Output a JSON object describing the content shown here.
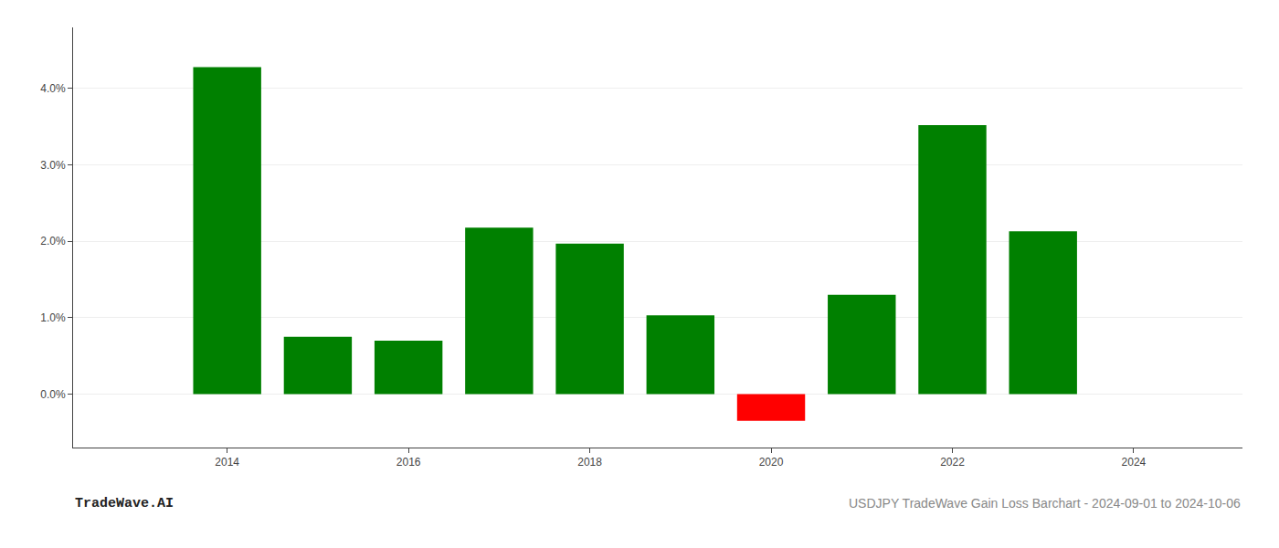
{
  "chart_data": {
    "type": "bar",
    "title": "USDJPY TradeWave Gain Loss Barchart - 2024-09-01 to 2024-10-06",
    "annotations": [
      {
        "text": "TradeWave.AI"
      }
    ],
    "x": [
      2014,
      2015,
      2016,
      2017,
      2018,
      2019,
      2020,
      2021,
      2022,
      2023
    ],
    "values": [
      0.0428,
      0.0075,
      0.007,
      0.0218,
      0.0197,
      0.0103,
      -0.0035,
      0.013,
      0.0352,
      0.0213
    ],
    "colors": [
      "#008000",
      "#008000",
      "#008000",
      "#008000",
      "#008000",
      "#008000",
      "#ff0000",
      "#008000",
      "#008000",
      "#008000"
    ],
    "xlim": [
      2012.3,
      2025.2
    ],
    "xticks": [
      2014,
      2016,
      2018,
      2020,
      2022,
      2024
    ],
    "ylim": [
      -0.007,
      0.048
    ],
    "yticks": [
      {
        "value": 0.0,
        "label": "0.0%"
      },
      {
        "value": 0.01,
        "label": "1.0%"
      },
      {
        "value": 0.02,
        "label": "2.0%"
      },
      {
        "value": 0.03,
        "label": "3.0%"
      },
      {
        "value": 0.04,
        "label": "4.0%"
      }
    ],
    "grid": true
  }
}
